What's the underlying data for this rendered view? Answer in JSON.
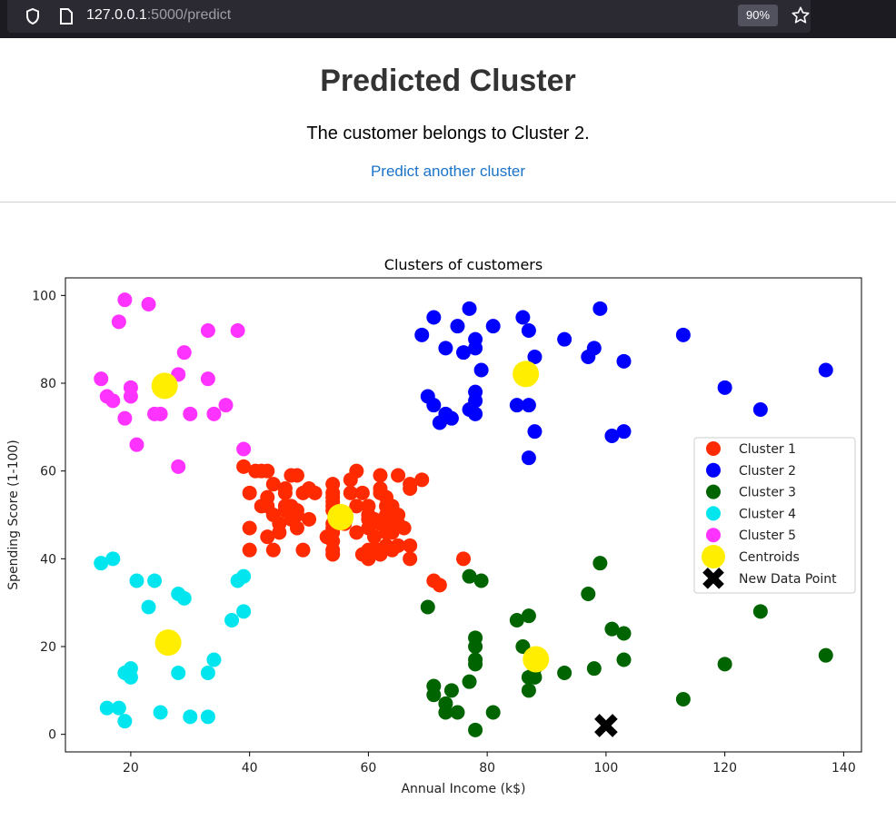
{
  "browser": {
    "url_host": "127.0.0.1",
    "url_path": ":5000/predict",
    "zoom": "90%"
  },
  "page": {
    "title": "Predicted Cluster",
    "message": "The customer belongs to Cluster 2.",
    "link": "Predict another cluster"
  },
  "chart_data": {
    "type": "scatter",
    "title": "Clusters of customers",
    "xlabel": "Annual Income (k$)",
    "ylabel": "Spending Score (1-100)",
    "xlim": [
      9,
      143
    ],
    "ylim": [
      -4,
      104
    ],
    "xticks": [
      20,
      40,
      60,
      80,
      100,
      120,
      140
    ],
    "yticks": [
      0,
      20,
      40,
      60,
      80,
      100
    ],
    "grid": false,
    "legend_position": "center-right",
    "series": [
      {
        "name": "Cluster 1",
        "color": "#ff2a00",
        "points": [
          [
            39,
            61
          ],
          [
            40,
            55
          ],
          [
            40,
            47
          ],
          [
            40,
            42
          ],
          [
            42,
            52
          ],
          [
            42,
            60
          ],
          [
            43,
            54
          ],
          [
            43,
            60
          ],
          [
            43,
            45
          ],
          [
            44,
            50
          ],
          [
            44,
            57
          ],
          [
            45,
            46
          ],
          [
            46,
            51
          ],
          [
            46,
            56
          ],
          [
            46,
            55
          ],
          [
            46,
            52
          ],
          [
            47,
            59
          ],
          [
            47,
            52
          ],
          [
            48,
            59
          ],
          [
            48,
            51
          ],
          [
            48,
            47
          ],
          [
            48,
            50
          ],
          [
            49,
            42
          ],
          [
            49,
            55
          ],
          [
            50,
            49
          ],
          [
            50,
            56
          ],
          [
            54,
            47
          ],
          [
            54,
            54
          ],
          [
            54,
            53
          ],
          [
            54,
            48
          ],
          [
            54,
            52
          ],
          [
            54,
            42
          ],
          [
            54,
            51
          ],
          [
            54,
            55
          ],
          [
            54,
            41
          ],
          [
            54,
            44
          ],
          [
            54,
            57
          ],
          [
            54,
            46
          ],
          [
            57,
            58
          ],
          [
            57,
            55
          ],
          [
            58,
            60
          ],
          [
            58,
            46
          ],
          [
            59,
            55
          ],
          [
            59,
            41
          ],
          [
            60,
            49
          ],
          [
            60,
            40
          ],
          [
            60,
            42
          ],
          [
            60,
            52
          ],
          [
            60,
            47
          ],
          [
            60,
            50
          ],
          [
            61,
            42
          ],
          [
            61,
            49
          ],
          [
            62,
            41
          ],
          [
            62,
            48
          ],
          [
            62,
            59
          ],
          [
            62,
            55
          ],
          [
            62,
            56
          ],
          [
            62,
            42
          ],
          [
            63,
            50
          ],
          [
            63,
            46
          ],
          [
            63,
            43
          ],
          [
            63,
            48
          ],
          [
            63,
            52
          ],
          [
            63,
            54
          ],
          [
            64,
            42
          ],
          [
            64,
            46
          ],
          [
            65,
            48
          ],
          [
            65,
            50
          ],
          [
            65,
            43
          ],
          [
            65,
            59
          ],
          [
            67,
            43
          ],
          [
            67,
            57
          ],
          [
            67,
            56
          ],
          [
            67,
            40
          ],
          [
            69,
            58
          ],
          [
            71,
            35
          ],
          [
            72,
            34
          ],
          [
            76,
            40
          ],
          [
            41,
            60
          ],
          [
            43,
            52
          ],
          [
            45,
            48
          ],
          [
            47,
            49
          ],
          [
            51,
            55
          ],
          [
            53,
            45
          ],
          [
            56,
            48
          ],
          [
            58,
            52
          ],
          [
            61,
            45
          ],
          [
            64,
            52
          ],
          [
            66,
            47
          ],
          [
            44,
            42
          ]
        ]
      },
      {
        "name": "Cluster 2",
        "color": "#0000ff",
        "points": [
          [
            69,
            91
          ],
          [
            70,
            77
          ],
          [
            71,
            95
          ],
          [
            71,
            75
          ],
          [
            72,
            71
          ],
          [
            73,
            88
          ],
          [
            73,
            73
          ],
          [
            74,
            72
          ],
          [
            75,
            93
          ],
          [
            76,
            87
          ],
          [
            77,
            97
          ],
          [
            77,
            74
          ],
          [
            78,
            90
          ],
          [
            78,
            88
          ],
          [
            78,
            76
          ],
          [
            78,
            78
          ],
          [
            78,
            73
          ],
          [
            79,
            83
          ],
          [
            81,
            93
          ],
          [
            85,
            75
          ],
          [
            86,
            95
          ],
          [
            87,
            63
          ],
          [
            87,
            75
          ],
          [
            87,
            92
          ],
          [
            88,
            86
          ],
          [
            88,
            69
          ],
          [
            93,
            90
          ],
          [
            97,
            86
          ],
          [
            98,
            88
          ],
          [
            99,
            97
          ],
          [
            101,
            68
          ],
          [
            103,
            85
          ],
          [
            103,
            69
          ],
          [
            113,
            91
          ],
          [
            120,
            79
          ],
          [
            126,
            74
          ],
          [
            137,
            83
          ]
        ]
      },
      {
        "name": "Cluster 3",
        "color": "#006400",
        "points": [
          [
            70,
            29
          ],
          [
            71,
            11
          ],
          [
            71,
            9
          ],
          [
            73,
            5
          ],
          [
            73,
            7
          ],
          [
            74,
            10
          ],
          [
            75,
            5
          ],
          [
            77,
            12
          ],
          [
            77,
            36
          ],
          [
            78,
            22
          ],
          [
            78,
            17
          ],
          [
            78,
            20
          ],
          [
            78,
            16
          ],
          [
            78,
            1
          ],
          [
            79,
            35
          ],
          [
            81,
            5
          ],
          [
            85,
            26
          ],
          [
            86,
            20
          ],
          [
            87,
            27
          ],
          [
            87,
            13
          ],
          [
            87,
            10
          ],
          [
            88,
            13
          ],
          [
            88,
            15
          ],
          [
            93,
            14
          ],
          [
            97,
            32
          ],
          [
            98,
            15
          ],
          [
            99,
            39
          ],
          [
            101,
            24
          ],
          [
            103,
            17
          ],
          [
            103,
            23
          ],
          [
            113,
            8
          ],
          [
            120,
            16
          ],
          [
            126,
            28
          ],
          [
            137,
            18
          ]
        ]
      },
      {
        "name": "Cluster 4",
        "color": "#00e5ee",
        "points": [
          [
            15,
            39
          ],
          [
            16,
            6
          ],
          [
            17,
            40
          ],
          [
            18,
            6
          ],
          [
            19,
            3
          ],
          [
            19,
            14
          ],
          [
            20,
            15
          ],
          [
            20,
            13
          ],
          [
            21,
            35
          ],
          [
            23,
            29
          ],
          [
            24,
            35
          ],
          [
            25,
            5
          ],
          [
            28,
            14
          ],
          [
            28,
            32
          ],
          [
            29,
            31
          ],
          [
            30,
            4
          ],
          [
            33,
            4
          ],
          [
            33,
            14
          ],
          [
            34,
            17
          ],
          [
            37,
            26
          ],
          [
            38,
            35
          ],
          [
            39,
            36
          ],
          [
            39,
            28
          ]
        ]
      },
      {
        "name": "Cluster 5",
        "color": "#ff33ff",
        "points": [
          [
            15,
            81
          ],
          [
            16,
            77
          ],
          [
            17,
            76
          ],
          [
            18,
            94
          ],
          [
            19,
            72
          ],
          [
            19,
            99
          ],
          [
            20,
            77
          ],
          [
            20,
            79
          ],
          [
            21,
            66
          ],
          [
            23,
            98
          ],
          [
            24,
            73
          ],
          [
            25,
            73
          ],
          [
            28,
            82
          ],
          [
            28,
            61
          ],
          [
            29,
            87
          ],
          [
            30,
            73
          ],
          [
            33,
            92
          ],
          [
            33,
            81
          ],
          [
            34,
            73
          ],
          [
            36,
            75
          ],
          [
            38,
            92
          ],
          [
            39,
            65
          ]
        ]
      },
      {
        "name": "Centroids",
        "color": "#ffee00",
        "points": [
          [
            25.7,
            79.4
          ],
          [
            55.3,
            49.5
          ],
          [
            86.5,
            82.1
          ],
          [
            88.2,
            17.1
          ],
          [
            26.3,
            20.9
          ]
        ]
      },
      {
        "name": "New Data Point",
        "color": "#000000",
        "marker": "x",
        "points": [
          [
            100,
            2
          ]
        ]
      }
    ]
  }
}
